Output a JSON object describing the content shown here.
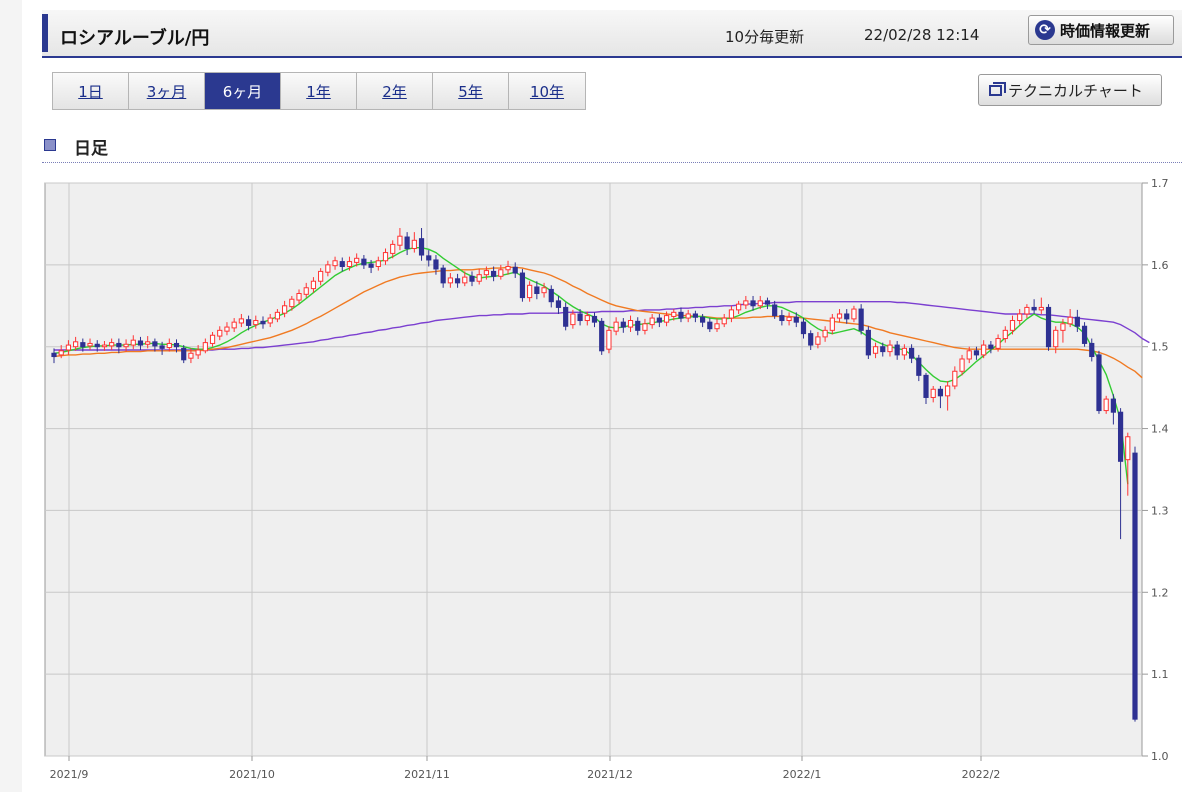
{
  "header": {
    "title": "ロシアルーブル/円",
    "update_frequency": "10分毎更新",
    "timestamp": "22/02/28 12:14",
    "refresh_label": "時価情報更新",
    "refresh_icon": "refresh-icon"
  },
  "tabs": [
    {
      "label": "1日",
      "active": false
    },
    {
      "label": "3ヶ月",
      "active": false
    },
    {
      "label": "6ヶ月",
      "active": true
    },
    {
      "label": "1年",
      "active": false
    },
    {
      "label": "2年",
      "active": false
    },
    {
      "label": "5年",
      "active": false
    },
    {
      "label": "10年",
      "active": false
    }
  ],
  "technical_chart_label": "テクニカルチャート",
  "section_label": "日足",
  "colors": {
    "up": "#ff3333",
    "down": "#2e3192",
    "ma_short": "#33cc33",
    "ma_mid": "#f07a22",
    "ma_long": "#7b3fd0"
  },
  "chart_data": {
    "type": "candlestick",
    "ylim": [
      1.0,
      1.7
    ],
    "y_ticks": [
      "1.0",
      "1.1",
      "1.2",
      "1.3",
      "1.4",
      "1.5",
      "1.6",
      "1.7"
    ],
    "x_ticks": [
      "2021/9",
      "2021/10",
      "2021/11",
      "2021/12",
      "2022/1",
      "2022/2"
    ],
    "candles": [
      [
        1.492,
        1.488,
        1.498,
        1.48
      ],
      [
        1.49,
        1.495,
        1.502,
        1.486
      ],
      [
        1.496,
        1.502,
        1.508,
        1.49
      ],
      [
        1.5,
        1.506,
        1.512,
        1.495
      ],
      [
        1.505,
        1.5,
        1.51,
        1.494
      ],
      [
        1.501,
        1.504,
        1.51,
        1.496
      ],
      [
        1.503,
        1.5,
        1.508,
        1.494
      ],
      [
        1.5,
        1.502,
        1.507,
        1.495
      ],
      [
        1.501,
        1.505,
        1.51,
        1.496
      ],
      [
        1.504,
        1.5,
        1.51,
        1.492
      ],
      [
        1.5,
        1.503,
        1.509,
        1.494
      ],
      [
        1.502,
        1.508,
        1.514,
        1.497
      ],
      [
        1.507,
        1.502,
        1.512,
        1.496
      ],
      [
        1.503,
        1.506,
        1.513,
        1.498
      ],
      [
        1.506,
        1.501,
        1.51,
        1.494
      ],
      [
        1.501,
        1.498,
        1.506,
        1.49
      ],
      [
        1.499,
        1.504,
        1.51,
        1.494
      ],
      [
        1.504,
        1.5,
        1.509,
        1.493
      ],
      [
        1.498,
        1.484,
        1.502,
        1.48
      ],
      [
        1.486,
        1.492,
        1.498,
        1.48
      ],
      [
        1.49,
        1.496,
        1.502,
        1.485
      ],
      [
        1.495,
        1.505,
        1.51,
        1.492
      ],
      [
        1.504,
        1.514,
        1.518,
        1.5
      ],
      [
        1.513,
        1.52,
        1.525,
        1.508
      ],
      [
        1.519,
        1.524,
        1.53,
        1.514
      ],
      [
        1.523,
        1.53,
        1.535,
        1.518
      ],
      [
        1.529,
        1.534,
        1.54,
        1.524
      ],
      [
        1.533,
        1.526,
        1.538,
        1.52
      ],
      [
        1.527,
        1.532,
        1.538,
        1.522
      ],
      [
        1.531,
        1.528,
        1.537,
        1.522
      ],
      [
        1.529,
        1.535,
        1.54,
        1.524
      ],
      [
        1.534,
        1.542,
        1.546,
        1.53
      ],
      [
        1.541,
        1.55,
        1.556,
        1.536
      ],
      [
        1.549,
        1.558,
        1.562,
        1.544
      ],
      [
        1.557,
        1.565,
        1.57,
        1.552
      ],
      [
        1.564,
        1.572,
        1.578,
        1.56
      ],
      [
        1.571,
        1.58,
        1.585,
        1.566
      ],
      [
        1.58,
        1.592,
        1.596,
        1.575
      ],
      [
        1.591,
        1.6,
        1.605,
        1.586
      ],
      [
        1.599,
        1.605,
        1.61,
        1.594
      ],
      [
        1.604,
        1.598,
        1.609,
        1.592
      ],
      [
        1.598,
        1.604,
        1.61,
        1.593
      ],
      [
        1.603,
        1.608,
        1.614,
        1.598
      ],
      [
        1.607,
        1.6,
        1.612,
        1.595
      ],
      [
        1.601,
        1.597,
        1.606,
        1.59
      ],
      [
        1.598,
        1.605,
        1.61,
        1.593
      ],
      [
        1.605,
        1.615,
        1.62,
        1.6
      ],
      [
        1.614,
        1.625,
        1.63,
        1.608
      ],
      [
        1.624,
        1.635,
        1.645,
        1.618
      ],
      [
        1.634,
        1.62,
        1.64,
        1.612
      ],
      [
        1.62,
        1.63,
        1.64,
        1.615
      ],
      [
        1.632,
        1.612,
        1.645,
        1.605
      ],
      [
        1.611,
        1.606,
        1.618,
        1.598
      ],
      [
        1.606,
        1.595,
        1.612,
        1.588
      ],
      [
        1.596,
        1.578,
        1.6,
        1.572
      ],
      [
        1.578,
        1.584,
        1.59,
        1.572
      ],
      [
        1.583,
        1.578,
        1.589,
        1.572
      ],
      [
        1.578,
        1.585,
        1.592,
        1.574
      ],
      [
        1.586,
        1.58,
        1.592,
        1.574
      ],
      [
        1.58,
        1.588,
        1.595,
        1.576
      ],
      [
        1.588,
        1.593,
        1.598,
        1.582
      ],
      [
        1.592,
        1.586,
        1.598,
        1.58
      ],
      [
        1.586,
        1.594,
        1.6,
        1.582
      ],
      [
        1.594,
        1.598,
        1.605,
        1.588
      ],
      [
        1.597,
        1.59,
        1.603,
        1.584
      ],
      [
        1.59,
        1.56,
        1.595,
        1.555
      ],
      [
        1.56,
        1.575,
        1.58,
        1.555
      ],
      [
        1.573,
        1.565,
        1.58,
        1.558
      ],
      [
        1.566,
        1.572,
        1.578,
        1.56
      ],
      [
        1.57,
        1.555,
        1.575,
        1.548
      ],
      [
        1.556,
        1.548,
        1.562,
        1.54
      ],
      [
        1.548,
        1.525,
        1.554,
        1.52
      ],
      [
        1.527,
        1.54,
        1.545,
        1.522
      ],
      [
        1.54,
        1.532,
        1.546,
        1.526
      ],
      [
        1.532,
        1.538,
        1.543,
        1.526
      ],
      [
        1.537,
        1.53,
        1.542,
        1.524
      ],
      [
        1.531,
        1.495,
        1.535,
        1.49
      ],
      [
        1.497,
        1.52,
        1.525,
        1.492
      ],
      [
        1.519,
        1.53,
        1.536,
        1.514
      ],
      [
        1.53,
        1.524,
        1.535,
        1.517
      ],
      [
        1.524,
        1.532,
        1.538,
        1.518
      ],
      [
        1.531,
        1.52,
        1.536,
        1.514
      ],
      [
        1.52,
        1.528,
        1.534,
        1.515
      ],
      [
        1.527,
        1.535,
        1.54,
        1.522
      ],
      [
        1.535,
        1.53,
        1.54,
        1.524
      ],
      [
        1.53,
        1.538,
        1.543,
        1.525
      ],
      [
        1.537,
        1.542,
        1.546,
        1.532
      ],
      [
        1.542,
        1.535,
        1.548,
        1.53
      ],
      [
        1.535,
        1.54,
        1.545,
        1.53
      ],
      [
        1.54,
        1.536,
        1.544,
        1.53
      ],
      [
        1.536,
        1.53,
        1.54,
        1.524
      ],
      [
        1.53,
        1.522,
        1.535,
        1.518
      ],
      [
        1.522,
        1.528,
        1.534,
        1.518
      ],
      [
        1.528,
        1.535,
        1.54,
        1.524
      ],
      [
        1.535,
        1.545,
        1.55,
        1.53
      ],
      [
        1.545,
        1.552,
        1.556,
        1.54
      ],
      [
        1.551,
        1.556,
        1.562,
        1.546
      ],
      [
        1.556,
        1.55,
        1.562,
        1.544
      ],
      [
        1.55,
        1.556,
        1.562,
        1.546
      ],
      [
        1.556,
        1.552,
        1.56,
        1.546
      ],
      [
        1.551,
        1.538,
        1.556,
        1.534
      ],
      [
        1.538,
        1.532,
        1.545,
        1.526
      ],
      [
        1.532,
        1.536,
        1.542,
        1.526
      ],
      [
        1.536,
        1.53,
        1.542,
        1.524
      ],
      [
        1.53,
        1.516,
        1.535,
        1.51
      ],
      [
        1.516,
        1.502,
        1.52,
        1.496
      ],
      [
        1.503,
        1.512,
        1.518,
        1.498
      ],
      [
        1.512,
        1.52,
        1.525,
        1.506
      ],
      [
        1.52,
        1.535,
        1.54,
        1.515
      ],
      [
        1.535,
        1.54,
        1.546,
        1.53
      ],
      [
        1.54,
        1.534,
        1.546,
        1.528
      ],
      [
        1.534,
        1.546,
        1.55,
        1.53
      ],
      [
        1.546,
        1.52,
        1.552,
        1.515
      ],
      [
        1.52,
        1.49,
        1.525,
        1.485
      ],
      [
        1.492,
        1.5,
        1.505,
        1.486
      ],
      [
        1.5,
        1.494,
        1.505,
        1.488
      ],
      [
        1.494,
        1.502,
        1.508,
        1.488
      ],
      [
        1.502,
        1.49,
        1.507,
        1.484
      ],
      [
        1.49,
        1.498,
        1.503,
        1.484
      ],
      [
        1.498,
        1.486,
        1.503,
        1.48
      ],
      [
        1.486,
        1.465,
        1.49,
        1.458
      ],
      [
        1.465,
        1.438,
        1.468,
        1.43
      ],
      [
        1.438,
        1.448,
        1.452,
        1.432
      ],
      [
        1.448,
        1.44,
        1.452,
        1.425
      ],
      [
        1.44,
        1.452,
        1.458,
        1.422
      ],
      [
        1.452,
        1.47,
        1.476,
        1.448
      ],
      [
        1.47,
        1.485,
        1.49,
        1.465
      ],
      [
        1.485,
        1.495,
        1.5,
        1.48
      ],
      [
        1.495,
        1.49,
        1.5,
        1.484
      ],
      [
        1.49,
        1.502,
        1.508,
        1.486
      ],
      [
        1.502,
        1.498,
        1.507,
        1.492
      ],
      [
        1.498,
        1.51,
        1.515,
        1.494
      ],
      [
        1.51,
        1.52,
        1.525,
        1.505
      ],
      [
        1.52,
        1.532,
        1.538,
        1.515
      ],
      [
        1.532,
        1.54,
        1.546,
        1.527
      ],
      [
        1.54,
        1.548,
        1.552,
        1.535
      ],
      [
        1.548,
        1.545,
        1.558,
        1.54
      ],
      [
        1.545,
        1.548,
        1.56,
        1.54
      ],
      [
        1.548,
        1.5,
        1.552,
        1.495
      ],
      [
        1.5,
        1.52,
        1.525,
        1.492
      ],
      [
        1.52,
        1.528,
        1.534,
        1.505
      ],
      [
        1.528,
        1.536,
        1.546,
        1.524
      ],
      [
        1.536,
        1.525,
        1.545,
        1.518
      ],
      [
        1.525,
        1.504,
        1.53,
        1.5
      ],
      [
        1.504,
        1.488,
        1.51,
        1.482
      ],
      [
        1.49,
        1.422,
        1.495,
        1.418
      ],
      [
        1.422,
        1.436,
        1.44,
        1.418
      ],
      [
        1.436,
        1.42,
        1.442,
        1.405
      ],
      [
        1.42,
        1.36,
        1.425,
        1.265
      ],
      [
        1.362,
        1.39,
        1.395,
        1.318
      ],
      [
        1.37,
        1.045,
        1.378,
        1.042
      ]
    ],
    "ma_short": [
      1.492,
      1.493,
      1.495,
      1.497,
      1.499,
      1.5,
      1.501,
      1.501,
      1.502,
      1.502,
      1.502,
      1.503,
      1.503,
      1.504,
      1.504,
      1.503,
      1.503,
      1.502,
      1.5,
      1.498,
      1.497,
      1.497,
      1.499,
      1.502,
      1.506,
      1.511,
      1.517,
      1.522,
      1.526,
      1.53,
      1.533,
      1.537,
      1.541,
      1.546,
      1.552,
      1.559,
      1.566,
      1.573,
      1.58,
      1.587,
      1.592,
      1.596,
      1.6,
      1.602,
      1.603,
      1.604,
      1.606,
      1.61,
      1.615,
      1.619,
      1.621,
      1.621,
      1.619,
      1.615,
      1.608,
      1.602,
      1.596,
      1.59,
      1.586,
      1.584,
      1.585,
      1.586,
      1.587,
      1.589,
      1.591,
      1.586,
      1.582,
      1.578,
      1.574,
      1.568,
      1.562,
      1.555,
      1.549,
      1.544,
      1.54,
      1.536,
      1.528,
      1.524,
      1.523,
      1.524,
      1.526,
      1.527,
      1.528,
      1.529,
      1.531,
      1.532,
      1.534,
      1.535,
      1.536,
      1.537,
      1.537,
      1.535,
      1.534,
      1.534,
      1.535,
      1.538,
      1.542,
      1.545,
      1.548,
      1.55,
      1.55,
      1.548,
      1.544,
      1.54,
      1.535,
      1.528,
      1.522,
      1.518,
      1.516,
      1.518,
      1.52,
      1.522,
      1.518,
      1.512,
      1.507,
      1.503,
      1.5,
      1.498,
      1.496,
      1.49,
      1.481,
      1.472,
      1.464,
      1.458,
      1.457,
      1.46,
      1.466,
      1.474,
      1.482,
      1.489,
      1.496,
      1.503,
      1.511,
      1.518,
      1.526,
      1.534,
      1.54,
      1.535,
      1.532,
      1.53,
      1.53,
      1.528,
      1.524,
      1.516,
      1.5,
      1.483,
      1.466,
      1.44,
      1.41,
      1.332
    ],
    "ma_mid": [
      1.488,
      1.489,
      1.49,
      1.49,
      1.491,
      1.491,
      1.492,
      1.492,
      1.493,
      1.493,
      1.494,
      1.494,
      1.494,
      1.495,
      1.495,
      1.495,
      1.495,
      1.495,
      1.495,
      1.495,
      1.495,
      1.496,
      1.497,
      1.498,
      1.499,
      1.501,
      1.503,
      1.505,
      1.507,
      1.509,
      1.511,
      1.514,
      1.517,
      1.52,
      1.524,
      1.528,
      1.533,
      1.537,
      1.542,
      1.547,
      1.552,
      1.557,
      1.562,
      1.567,
      1.571,
      1.575,
      1.579,
      1.582,
      1.585,
      1.587,
      1.589,
      1.59,
      1.591,
      1.592,
      1.593,
      1.593,
      1.594,
      1.594,
      1.594,
      1.595,
      1.595,
      1.596,
      1.596,
      1.597,
      1.597,
      1.596,
      1.594,
      1.592,
      1.59,
      1.587,
      1.583,
      1.579,
      1.574,
      1.57,
      1.565,
      1.561,
      1.557,
      1.553,
      1.55,
      1.548,
      1.546,
      1.544,
      1.543,
      1.542,
      1.541,
      1.54,
      1.539,
      1.538,
      1.538,
      1.537,
      1.537,
      1.536,
      1.535,
      1.535,
      1.535,
      1.535,
      1.535,
      1.536,
      1.536,
      1.537,
      1.537,
      1.537,
      1.537,
      1.536,
      1.535,
      1.534,
      1.533,
      1.532,
      1.531,
      1.53,
      1.529,
      1.528,
      1.527,
      1.525,
      1.522,
      1.52,
      1.517,
      1.515,
      1.513,
      1.511,
      1.509,
      1.507,
      1.505,
      1.503,
      1.501,
      1.499,
      1.498,
      1.497,
      1.497,
      1.497,
      1.497,
      1.497,
      1.497,
      1.497,
      1.497,
      1.497,
      1.497,
      1.497,
      1.497,
      1.497,
      1.497,
      1.497,
      1.497,
      1.496,
      1.495,
      1.493,
      1.49,
      1.486,
      1.481,
      1.475,
      1.47,
      1.462
    ],
    "ma_long": [
      1.496,
      1.496,
      1.496,
      1.496,
      1.496,
      1.496,
      1.496,
      1.496,
      1.496,
      1.496,
      1.496,
      1.496,
      1.496,
      1.496,
      1.496,
      1.496,
      1.496,
      1.496,
      1.496,
      1.496,
      1.496,
      1.496,
      1.496,
      1.497,
      1.497,
      1.497,
      1.498,
      1.498,
      1.499,
      1.499,
      1.5,
      1.501,
      1.502,
      1.503,
      1.504,
      1.505,
      1.506,
      1.508,
      1.509,
      1.511,
      1.512,
      1.514,
      1.515,
      1.517,
      1.518,
      1.52,
      1.521,
      1.523,
      1.524,
      1.526,
      1.527,
      1.529,
      1.53,
      1.532,
      1.533,
      1.534,
      1.535,
      1.536,
      1.537,
      1.538,
      1.538,
      1.539,
      1.539,
      1.54,
      1.54,
      1.54,
      1.541,
      1.541,
      1.541,
      1.541,
      1.541,
      1.542,
      1.542,
      1.542,
      1.542,
      1.542,
      1.543,
      1.543,
      1.543,
      1.543,
      1.544,
      1.544,
      1.545,
      1.545,
      1.545,
      1.546,
      1.546,
      1.547,
      1.547,
      1.548,
      1.548,
      1.549,
      1.549,
      1.55,
      1.55,
      1.551,
      1.552,
      1.552,
      1.553,
      1.553,
      1.554,
      1.554,
      1.554,
      1.555,
      1.555,
      1.555,
      1.555,
      1.555,
      1.555,
      1.555,
      1.555,
      1.555,
      1.555,
      1.555,
      1.555,
      1.555,
      1.555,
      1.554,
      1.554,
      1.553,
      1.552,
      1.551,
      1.55,
      1.549,
      1.548,
      1.547,
      1.546,
      1.545,
      1.544,
      1.543,
      1.542,
      1.541,
      1.54,
      1.54,
      1.54,
      1.54,
      1.54,
      1.539,
      1.539,
      1.538,
      1.537,
      1.536,
      1.535,
      1.534,
      1.533,
      1.532,
      1.531,
      1.53,
      1.527,
      1.522,
      1.517,
      1.51,
      1.505
    ]
  }
}
